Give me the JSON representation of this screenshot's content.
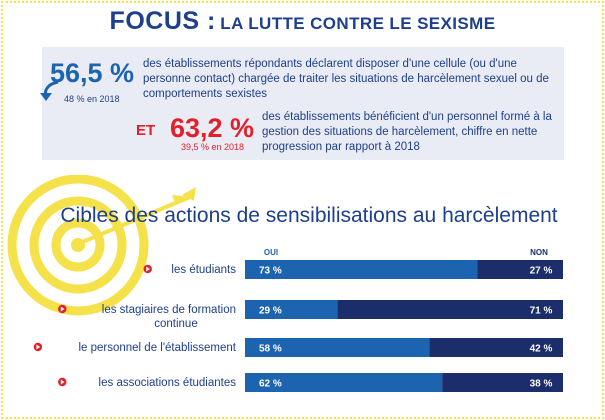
{
  "header": {
    "title_main": "FOCUS :",
    "title_sub": "LA LUTTE CONTRE LE SEXISME"
  },
  "stats": {
    "stat1_value": "56,5 %",
    "stat1_previous": "48 % en 2018",
    "stat1_text": "des établissements répondants déclarent disposer d'une cellule (ou d'une personne contact) chargée de traiter les situations de harcèlement sexuel ou de comportements sexistes",
    "connector": "ET",
    "stat2_value": "63,2 %",
    "stat2_previous": "39,5 % en 2018",
    "stat2_text": "des établissements bénéficient d'un personnel formé à la gestion des situations de harcèlement, chiffre en nette progression par rapport à 2018"
  },
  "colors": {
    "oui": "#1d64b0",
    "non": "#1b2d6b",
    "accent": "#e3202a",
    "title": "#1d3f8c",
    "decor": "#f5e14a"
  },
  "chart_data": {
    "type": "bar",
    "stacked": true,
    "orientation": "horizontal",
    "title": "Cibles des actions de sensibilisations au harcèlement",
    "legend_labels": [
      "OUI",
      "NON"
    ],
    "categories": [
      [
        "les étudiants"
      ],
      [
        "les stagiaires de formation",
        "continue"
      ],
      [
        "le personnel de l'établissement"
      ],
      [
        "les associations étudiantes"
      ]
    ],
    "series": [
      {
        "name": "OUI",
        "values": [
          73,
          29,
          58,
          62
        ],
        "labels": [
          "73 %",
          "29 %",
          "58 %",
          "62 %"
        ]
      },
      {
        "name": "NON",
        "values": [
          27,
          71,
          42,
          38
        ],
        "labels": [
          "27 %",
          "71 %",
          "42 %",
          "38 %"
        ]
      }
    ],
    "xlim": [
      0,
      100
    ]
  }
}
